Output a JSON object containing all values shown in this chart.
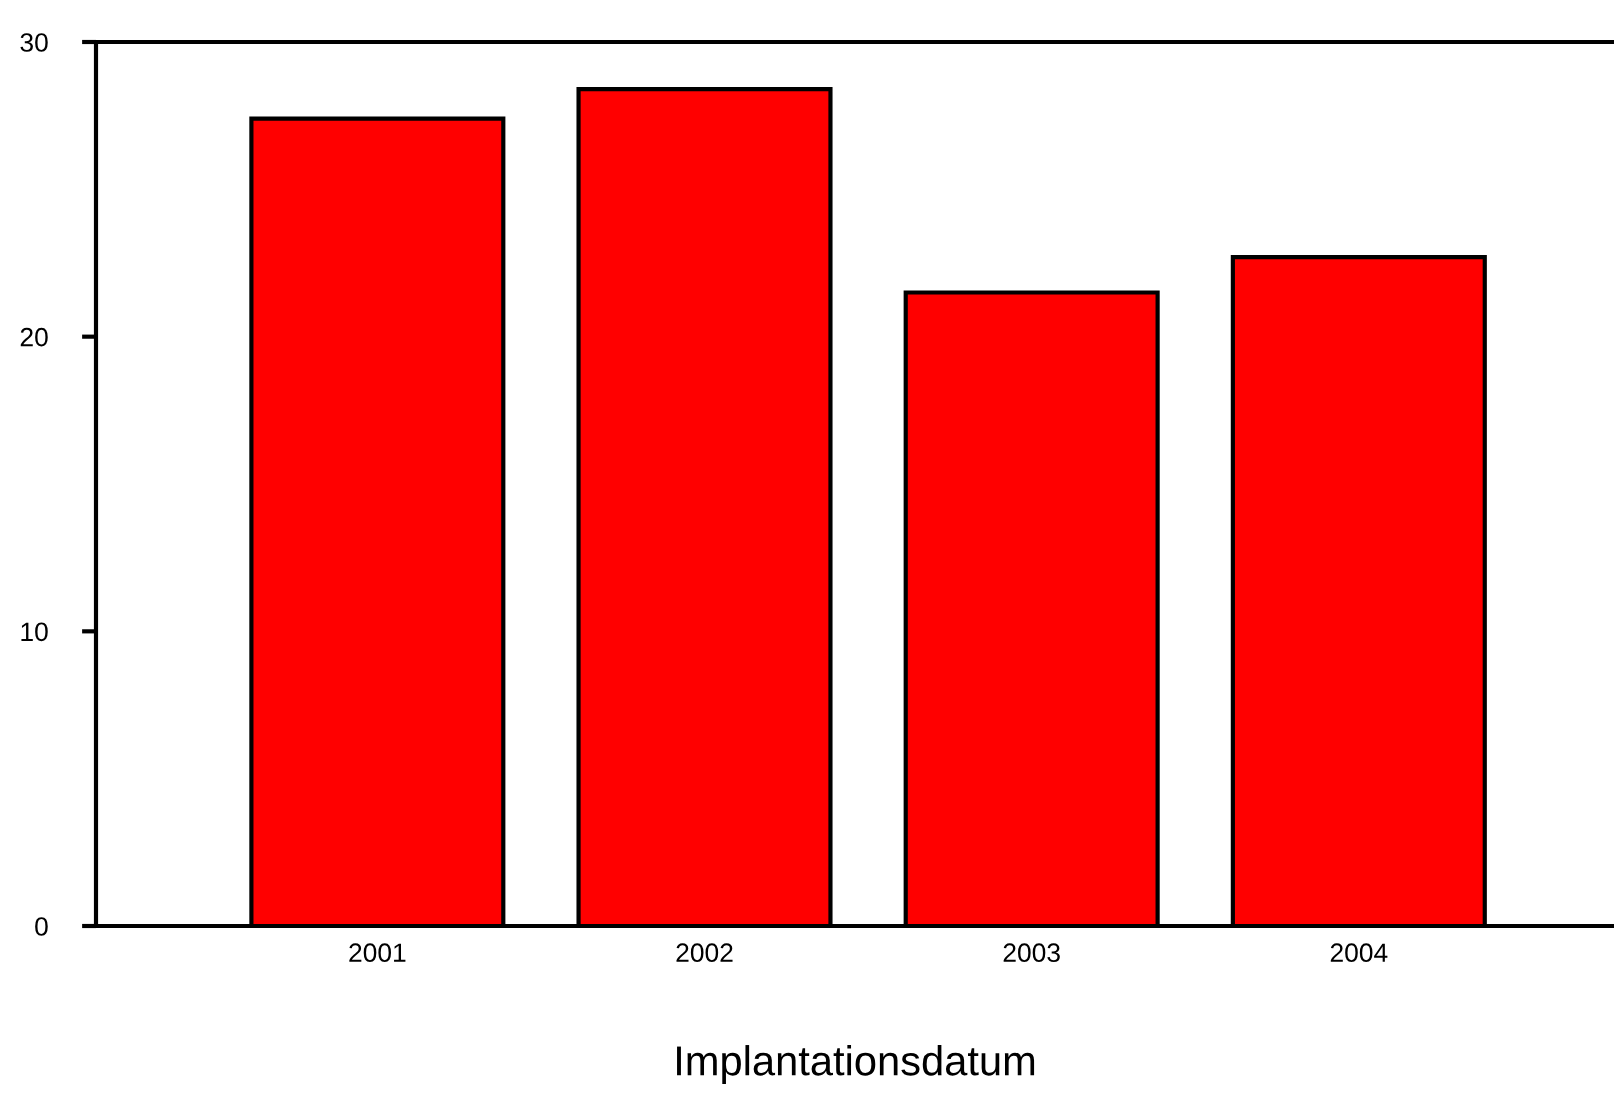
{
  "chart_data": {
    "type": "bar",
    "xlabel": "Implantationsdatum",
    "categories": [
      "2001",
      "2002",
      "2003",
      "2004"
    ],
    "values": [
      27.4,
      28.4,
      21.5,
      22.7
    ],
    "color": "#ff0000",
    "ylim": [
      0,
      30
    ],
    "yticks": [
      0,
      10,
      20,
      30
    ],
    "grid": false
  }
}
